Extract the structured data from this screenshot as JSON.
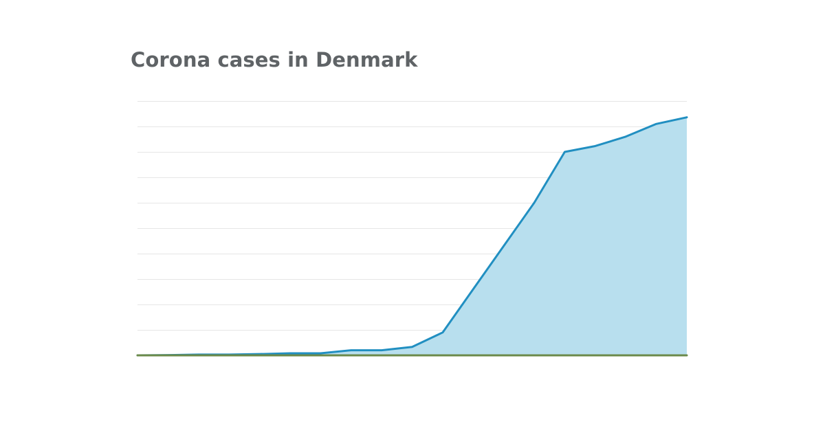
{
  "chart_data": {
    "type": "area",
    "title": "Corona cases in Denmark",
    "xlabel": "",
    "ylabel": "",
    "grid": true,
    "legend": "none",
    "tick_labels_visible": false,
    "ylim": [
      0,
      1000
    ],
    "x": [
      1,
      2,
      3,
      4,
      5,
      6,
      7,
      8,
      9,
      10,
      11,
      12,
      13,
      14,
      15,
      16,
      17,
      18,
      19
    ],
    "series": [
      {
        "name": "",
        "color": "#218fc1",
        "fill": "#b8dfee",
        "values": [
          0,
          1,
          3,
          3,
          5,
          8,
          8,
          20,
          20,
          33,
          90,
          260,
          430,
          600,
          800,
          823,
          860,
          910,
          936
        ]
      },
      {
        "name": "",
        "color": "#6b8a4a",
        "values": [
          0,
          0,
          0,
          0,
          0,
          0,
          0,
          0,
          0,
          0,
          0,
          0,
          0,
          0,
          0,
          0,
          0,
          0,
          0
        ]
      }
    ],
    "colors": {
      "grid": "#e6e6e6",
      "title": "#5f6366"
    }
  }
}
